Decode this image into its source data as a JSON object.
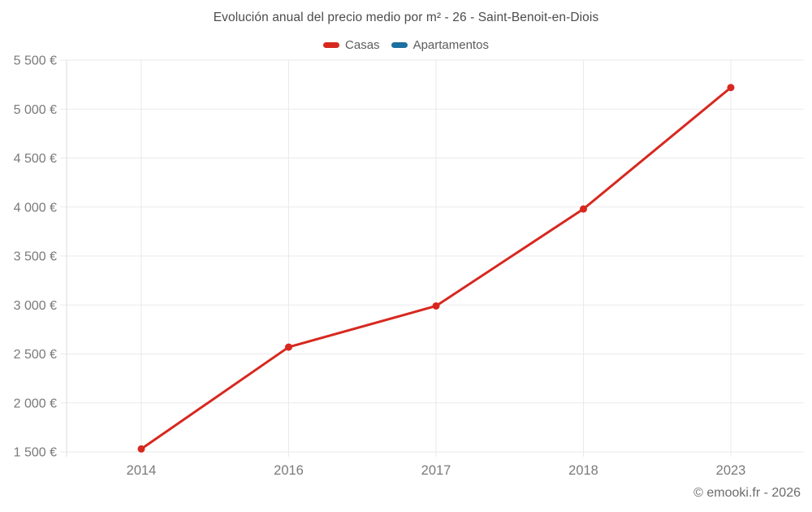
{
  "title": "Evolución anual del precio medio por m² - 26 - Saint-Benoit-en-Diois",
  "legend": [
    {
      "label": "Casas",
      "color": "#d7281f"
    },
    {
      "label": "Apartamentos",
      "color": "#1b70a0"
    }
  ],
  "footer": {
    "text": "© emooki.fr - 2026"
  },
  "colors": {
    "grid": "#eaeaea",
    "axis": "#dedede",
    "tick_label": "#7a7a7a",
    "title_text": "#4c4c4c",
    "background": "#ffffff"
  },
  "chart_data": {
    "type": "line",
    "title": "Evolución anual del precio medio por m² - 26 - Saint-Benoit-en-Diois",
    "categories": [
      "2014",
      "2016",
      "2017",
      "2018",
      "2023"
    ],
    "series": [
      {
        "name": "Casas",
        "color": "#d7281f",
        "values": [
          1530,
          2570,
          2990,
          3980,
          5220
        ]
      },
      {
        "name": "Apartamentos",
        "color": "#1b70a0",
        "values": [
          null,
          null,
          null,
          null,
          null
        ]
      }
    ],
    "xlabel": "",
    "ylabel": "",
    "ylim": [
      1500,
      5500
    ],
    "yticks": [
      1500,
      2000,
      2500,
      3000,
      3500,
      4000,
      4500,
      5000,
      5500
    ],
    "ytick_labels": [
      "1 500 €",
      "2 000 €",
      "2 500 €",
      "3 000 €",
      "3 500 €",
      "4 000 €",
      "4 500 €",
      "5 000 €",
      "5 500 €"
    ],
    "grid": true,
    "legend_position": "top",
    "point_radius": 4.5,
    "line_width": 3
  }
}
